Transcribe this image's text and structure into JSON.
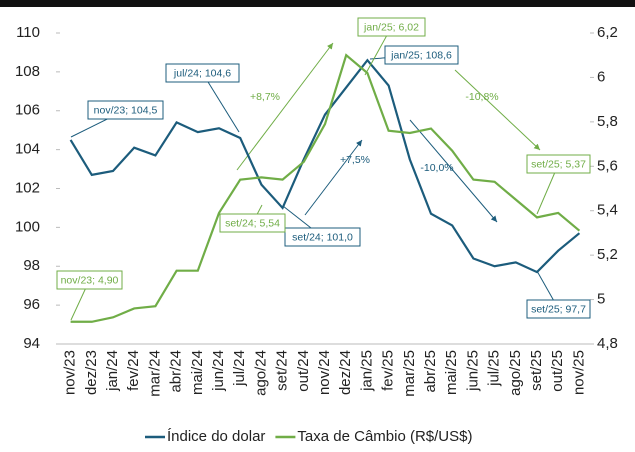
{
  "chart_data": {
    "type": "line",
    "categories": [
      "nov/23",
      "dez/23",
      "jan/24",
      "fev/24",
      "mar/24",
      "abr/24",
      "mai/24",
      "jun/24",
      "jul/24",
      "ago/24",
      "set/24",
      "out/24",
      "nov/24",
      "dez/24",
      "jan/25",
      "fev/25",
      "mar/25",
      "abr/25",
      "mai/25",
      "jun/25",
      "jul/25",
      "ago/25",
      "set/25",
      "out/25",
      "nov/25"
    ],
    "series": [
      {
        "name": "Índice do dolar",
        "color": "#1c5c7c",
        "values": [
          104.5,
          102.7,
          102.9,
          104.1,
          103.7,
          105.4,
          104.9,
          105.1,
          104.6,
          102.2,
          101.0,
          103.5,
          105.8,
          107.2,
          108.6,
          107.3,
          103.5,
          100.7,
          100.1,
          98.4,
          98.0,
          98.2,
          97.7,
          98.8,
          99.7
        ]
      },
      {
        "name": "Taxa de Câmbio (R$/US$)",
        "color": "#70ad47",
        "axis": "y2",
        "values": [
          4.9,
          4.9,
          4.92,
          4.96,
          4.97,
          5.13,
          5.13,
          5.39,
          5.54,
          5.55,
          5.54,
          5.62,
          5.79,
          6.1,
          6.02,
          5.76,
          5.75,
          5.77,
          5.67,
          5.54,
          5.53,
          5.45,
          5.37,
          5.39,
          5.31
        ]
      }
    ],
    "ylim": [
      94,
      110
    ],
    "yticks": [
      94,
      96,
      98,
      100,
      102,
      104,
      106,
      108,
      110
    ],
    "y2lim": [
      4.8,
      6.2
    ],
    "y2ticks": [
      {
        "value": 4.8,
        "label": "4,8"
      },
      {
        "value": 5,
        "label": "5"
      },
      {
        "value": 5.2,
        "label": "5,2"
      },
      {
        "value": 5.4,
        "label": "5,4"
      },
      {
        "value": 5.6,
        "label": "5,6"
      },
      {
        "value": 5.8,
        "label": "5,8"
      },
      {
        "value": 6,
        "label": "6"
      },
      {
        "value": 6.2,
        "label": "6,2"
      }
    ],
    "annotations": [
      "nov/23; 104,5",
      "jul/24; 104,6",
      "jan/25; 108,6",
      "set/24; 101,0",
      "set/25; 97,7",
      "nov/23; 4,90",
      "set/24; 5,54",
      "jan/25; 6,02",
      "set/25; 5,37",
      "+8,7%",
      "-10,8%",
      "+7,5%",
      "-10,0%"
    ]
  }
}
